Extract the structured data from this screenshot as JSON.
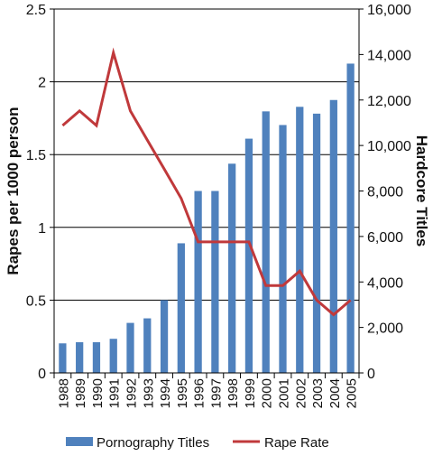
{
  "chart_data": {
    "type": "bar",
    "categories": [
      "1988",
      "1989",
      "1990",
      "1991",
      "1992",
      "1993",
      "1994",
      "1995",
      "1996",
      "1997",
      "1998",
      "1999",
      "2000",
      "2001",
      "2002",
      "2003",
      "2004",
      "2005"
    ],
    "series": [
      {
        "name": "Pornography Titles",
        "type": "bar",
        "axis": "right",
        "color": "#4f81bd",
        "values": [
          1300,
          1350,
          1350,
          1500,
          2200,
          2400,
          3200,
          5700,
          8000,
          8000,
          9200,
          10300,
          11500,
          10900,
          11700,
          11400,
          12000,
          13600
        ]
      },
      {
        "name": "Rape Rate",
        "type": "line",
        "axis": "left",
        "color": "#c0393b",
        "values": [
          1.7,
          1.8,
          1.7,
          2.2,
          1.8,
          1.6,
          1.4,
          1.2,
          0.9,
          0.9,
          0.9,
          0.9,
          0.6,
          0.6,
          0.7,
          0.5,
          0.4,
          0.5
        ]
      }
    ],
    "left_axis": {
      "label": "Rapes per 1000 person",
      "range": [
        0,
        2.5
      ],
      "ticks": [
        "0",
        "0.5",
        "1",
        "1.5",
        "2",
        "2.5"
      ]
    },
    "right_axis": {
      "label": "Hardcore Titles",
      "range": [
        0,
        16000
      ],
      "ticks": [
        "0",
        "2,000",
        "4,000",
        "6,000",
        "8,000",
        "10,000",
        "12,000",
        "14,000",
        "16,000"
      ]
    },
    "gridlines": "horizontal",
    "legend": "bottom"
  }
}
